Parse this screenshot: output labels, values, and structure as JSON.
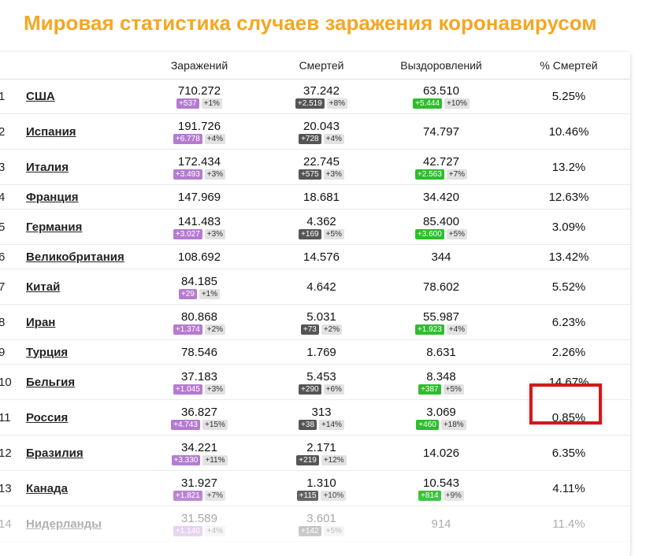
{
  "page": {
    "title": "Мировая статистика случаев заражения коронавирусом"
  },
  "colors": {
    "title": "#f5a623",
    "infected_badge": "#b57bd0",
    "deaths_badge": "#555555",
    "recovered_badge": "#2cbe2c",
    "highlight": "#d11a1a"
  },
  "table": {
    "headers": {
      "rank": "",
      "country": "",
      "infected": "Заражений",
      "deaths": "Смертей",
      "recovered": "Выздоровлений",
      "death_pct": "% Смертей"
    },
    "rows": [
      {
        "rank": "1",
        "country": "США",
        "infected": "710.272",
        "infected_delta": "+537",
        "infected_pct": "+1%",
        "deaths": "37.242",
        "deaths_delta": "+2.519",
        "deaths_pct": "+8%",
        "recovered": "63.510",
        "recovered_delta": "+5.444",
        "recovered_pct": "+10%",
        "death_pct": "5.25%"
      },
      {
        "rank": "2",
        "country": "Испания",
        "infected": "191.726",
        "infected_delta": "+6.778",
        "infected_pct": "+4%",
        "deaths": "20.043",
        "deaths_delta": "+728",
        "deaths_pct": "+4%",
        "recovered": "74.797",
        "recovered_delta": "",
        "recovered_pct": "",
        "death_pct": "10.46%"
      },
      {
        "rank": "3",
        "country": "Италия",
        "infected": "172.434",
        "infected_delta": "+3.493",
        "infected_pct": "+3%",
        "deaths": "22.745",
        "deaths_delta": "+575",
        "deaths_pct": "+3%",
        "recovered": "42.727",
        "recovered_delta": "+2.563",
        "recovered_pct": "+7%",
        "death_pct": "13.2%"
      },
      {
        "rank": "4",
        "country": "Франция",
        "infected": "147.969",
        "infected_delta": "",
        "infected_pct": "",
        "deaths": "18.681",
        "deaths_delta": "",
        "deaths_pct": "",
        "recovered": "34.420",
        "recovered_delta": "",
        "recovered_pct": "",
        "death_pct": "12.63%"
      },
      {
        "rank": "5",
        "country": "Германия",
        "infected": "141.483",
        "infected_delta": "+3.027",
        "infected_pct": "+3%",
        "deaths": "4.362",
        "deaths_delta": "+169",
        "deaths_pct": "+5%",
        "recovered": "85.400",
        "recovered_delta": "+3.600",
        "recovered_pct": "+5%",
        "death_pct": "3.09%"
      },
      {
        "rank": "6",
        "country": "Великобритания",
        "infected": "108.692",
        "infected_delta": "",
        "infected_pct": "",
        "deaths": "14.576",
        "deaths_delta": "",
        "deaths_pct": "",
        "recovered": "344",
        "recovered_delta": "",
        "recovered_pct": "",
        "death_pct": "13.42%"
      },
      {
        "rank": "7",
        "country": "Китай",
        "infected": "84.185",
        "infected_delta": "+29",
        "infected_pct": "+1%",
        "deaths": "4.642",
        "deaths_delta": "",
        "deaths_pct": "",
        "recovered": "78.602",
        "recovered_delta": "",
        "recovered_pct": "",
        "death_pct": "5.52%"
      },
      {
        "rank": "8",
        "country": "Иран",
        "infected": "80.868",
        "infected_delta": "+1.374",
        "infected_pct": "+2%",
        "deaths": "5.031",
        "deaths_delta": "+73",
        "deaths_pct": "+2%",
        "recovered": "55.987",
        "recovered_delta": "+1.923",
        "recovered_pct": "+4%",
        "death_pct": "6.23%"
      },
      {
        "rank": "9",
        "country": "Турция",
        "infected": "78.546",
        "infected_delta": "",
        "infected_pct": "",
        "deaths": "1.769",
        "deaths_delta": "",
        "deaths_pct": "",
        "recovered": "8.631",
        "recovered_delta": "",
        "recovered_pct": "",
        "death_pct": "2.26%"
      },
      {
        "rank": "10",
        "country": "Бельгия",
        "infected": "37.183",
        "infected_delta": "+1.045",
        "infected_pct": "+3%",
        "deaths": "5.453",
        "deaths_delta": "+290",
        "deaths_pct": "+6%",
        "recovered": "8.348",
        "recovered_delta": "+387",
        "recovered_pct": "+5%",
        "death_pct": "14.67%"
      },
      {
        "rank": "11",
        "country": "Россия",
        "infected": "36.827",
        "infected_delta": "+4.743",
        "infected_pct": "+15%",
        "deaths": "313",
        "deaths_delta": "+38",
        "deaths_pct": "+14%",
        "recovered": "3.069",
        "recovered_delta": "+460",
        "recovered_pct": "+18%",
        "death_pct": "0.85%"
      },
      {
        "rank": "12",
        "country": "Бразилия",
        "infected": "34.221",
        "infected_delta": "+3.330",
        "infected_pct": "+11%",
        "deaths": "2.171",
        "deaths_delta": "+219",
        "deaths_pct": "+12%",
        "recovered": "14.026",
        "recovered_delta": "",
        "recovered_pct": "",
        "death_pct": "6.35%"
      },
      {
        "rank": "13",
        "country": "Канада",
        "infected": "31.927",
        "infected_delta": "+1.821",
        "infected_pct": "+7%",
        "deaths": "1.310",
        "deaths_delta": "+115",
        "deaths_pct": "+10%",
        "recovered": "10.543",
        "recovered_delta": "+814",
        "recovered_pct": "+9%",
        "death_pct": "4.11%"
      },
      {
        "rank": "14",
        "country": "Нидерланды",
        "infected": "31.589",
        "infected_delta": "+1.140",
        "infected_pct": "+4%",
        "deaths": "3.601",
        "deaths_delta": "+142",
        "deaths_pct": "+5%",
        "recovered": "914",
        "recovered_delta": "",
        "recovered_pct": "",
        "death_pct": "11.4%"
      }
    ]
  }
}
